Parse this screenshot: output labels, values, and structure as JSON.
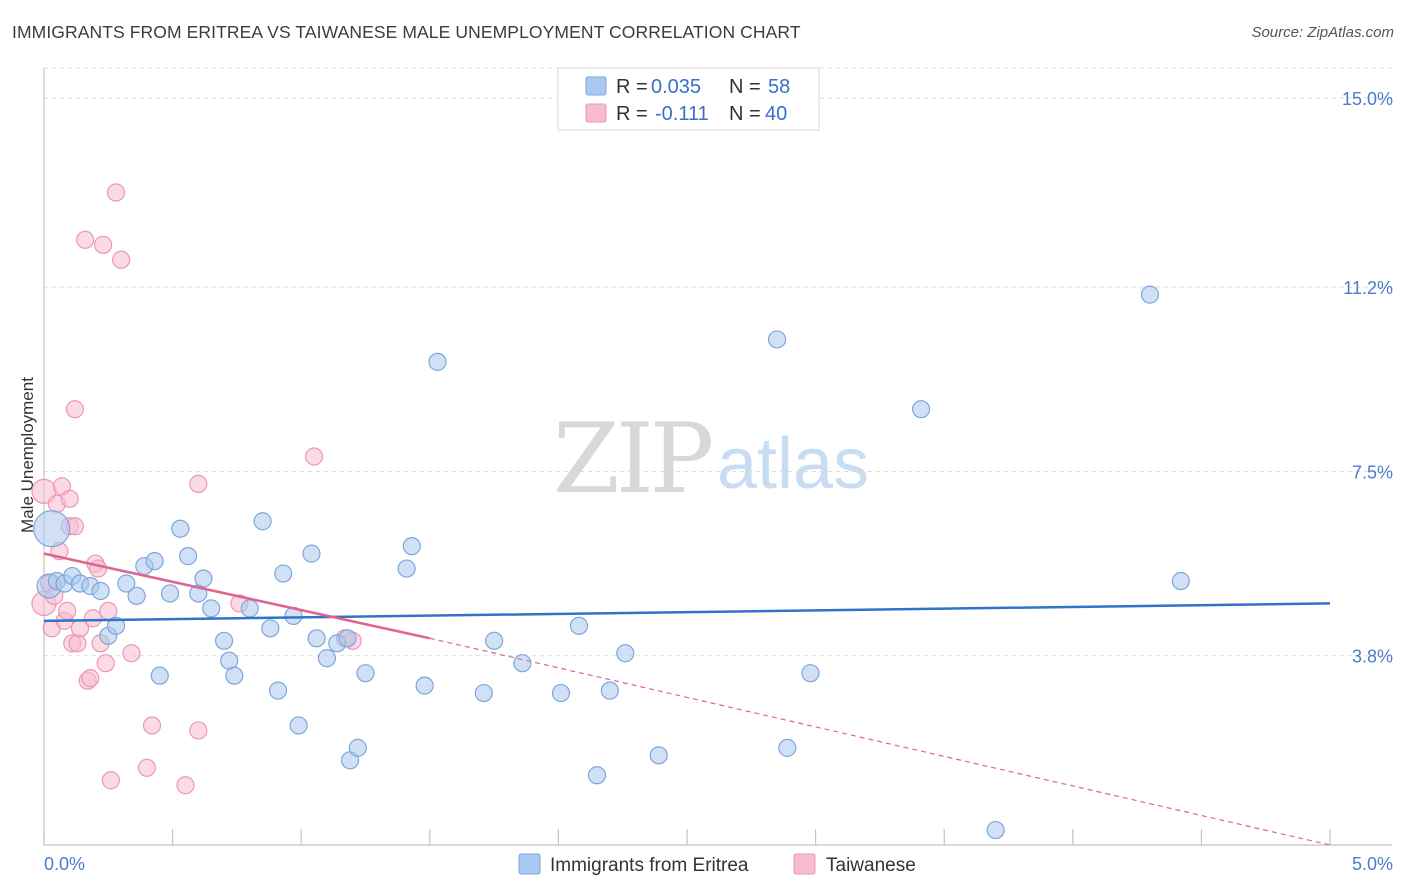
{
  "title": "IMMIGRANTS FROM ERITREA VS TAIWANESE MALE UNEMPLOYMENT CORRELATION CHART",
  "source": "Source: ZipAtlas.com",
  "watermark": {
    "zip": "ZIP",
    "atlas": "atlas"
  },
  "colors": {
    "blue": "#a9c8ef",
    "blue_stroke": "#7ea6dc",
    "blue_line": "#2f74c9",
    "pink": "#f7bcd0",
    "pink_stroke": "#ec97b4",
    "pink_line": "#e0648f",
    "grid": "#dcdcdc",
    "axis": "#bbbbbb"
  },
  "legend": {
    "rows": [
      {
        "r_label": "R = ",
        "r_value": "0.035",
        "n_label": "N = ",
        "n_value": "58"
      },
      {
        "r_label": "R = ",
        "r_value": "-0.111",
        "n_label": "N = ",
        "n_value": "40"
      }
    ]
  },
  "bottom_legend": [
    "Immigrants from Eritrea",
    "Taiwanese"
  ],
  "chart_data": {
    "type": "scatter",
    "title": "IMMIGRANTS FROM ERITREA VS TAIWANESE MALE UNEMPLOYMENT CORRELATION CHART",
    "xlabel": "",
    "ylabel": "Male Unemployment",
    "xlim": [
      0,
      5.0
    ],
    "ylim": [
      0,
      15.6
    ],
    "x_tick_labels": [
      "0.0%",
      "5.0%"
    ],
    "y_ticks": [
      3.8,
      7.5,
      11.2,
      15.0
    ],
    "y_tick_labels": [
      "3.8%",
      "7.5%",
      "11.2%",
      "15.0%"
    ],
    "grid": true,
    "legend_position": "top-center",
    "series": [
      {
        "name": "Immigrants from Eritrea",
        "R": 0.035,
        "N": 58,
        "trend": {
          "x0": 0.0,
          "y0": 4.5,
          "x1": 5.0,
          "y1": 4.85
        },
        "points": [
          {
            "x": 0.02,
            "y": 5.2,
            "s": "l"
          },
          {
            "x": 0.03,
            "y": 6.35,
            "s": "xl"
          },
          {
            "x": 0.05,
            "y": 5.3
          },
          {
            "x": 0.08,
            "y": 5.25
          },
          {
            "x": 0.11,
            "y": 5.4
          },
          {
            "x": 0.14,
            "y": 5.25
          },
          {
            "x": 0.18,
            "y": 5.2
          },
          {
            "x": 0.22,
            "y": 5.1
          },
          {
            "x": 0.25,
            "y": 4.2
          },
          {
            "x": 0.28,
            "y": 4.4
          },
          {
            "x": 0.32,
            "y": 5.25
          },
          {
            "x": 0.36,
            "y": 5.0
          },
          {
            "x": 0.39,
            "y": 5.6
          },
          {
            "x": 0.43,
            "y": 5.7
          },
          {
            "x": 0.45,
            "y": 3.4
          },
          {
            "x": 0.49,
            "y": 5.05
          },
          {
            "x": 0.53,
            "y": 6.35
          },
          {
            "x": 0.56,
            "y": 5.8
          },
          {
            "x": 0.6,
            "y": 5.05
          },
          {
            "x": 0.62,
            "y": 5.35
          },
          {
            "x": 0.65,
            "y": 4.75
          },
          {
            "x": 0.7,
            "y": 4.1
          },
          {
            "x": 0.72,
            "y": 3.7
          },
          {
            "x": 0.74,
            "y": 3.4
          },
          {
            "x": 0.8,
            "y": 4.75
          },
          {
            "x": 0.85,
            "y": 6.5
          },
          {
            "x": 0.88,
            "y": 4.35
          },
          {
            "x": 0.91,
            "y": 3.1
          },
          {
            "x": 0.93,
            "y": 5.45
          },
          {
            "x": 0.97,
            "y": 4.6
          },
          {
            "x": 0.99,
            "y": 2.4
          },
          {
            "x": 1.04,
            "y": 5.85
          },
          {
            "x": 1.06,
            "y": 4.15
          },
          {
            "x": 1.1,
            "y": 3.75
          },
          {
            "x": 1.14,
            "y": 4.05
          },
          {
            "x": 1.18,
            "y": 4.15
          },
          {
            "x": 1.19,
            "y": 1.7
          },
          {
            "x": 1.22,
            "y": 1.95
          },
          {
            "x": 1.25,
            "y": 3.45
          },
          {
            "x": 1.41,
            "y": 5.55
          },
          {
            "x": 1.43,
            "y": 6.0
          },
          {
            "x": 1.48,
            "y": 3.2
          },
          {
            "x": 1.53,
            "y": 9.7
          },
          {
            "x": 1.71,
            "y": 3.05
          },
          {
            "x": 1.75,
            "y": 4.1
          },
          {
            "x": 1.86,
            "y": 3.65
          },
          {
            "x": 2.01,
            "y": 3.05
          },
          {
            "x": 2.08,
            "y": 4.4
          },
          {
            "x": 2.15,
            "y": 1.4
          },
          {
            "x": 2.2,
            "y": 3.1
          },
          {
            "x": 2.26,
            "y": 3.85
          },
          {
            "x": 2.39,
            "y": 1.8
          },
          {
            "x": 2.89,
            "y": 1.95
          },
          {
            "x": 2.85,
            "y": 10.15
          },
          {
            "x": 2.98,
            "y": 3.45
          },
          {
            "x": 3.41,
            "y": 8.75
          },
          {
            "x": 3.7,
            "y": 0.3
          },
          {
            "x": 4.3,
            "y": 11.05
          },
          {
            "x": 4.42,
            "y": 5.3
          }
        ]
      },
      {
        "name": "Taiwanese",
        "R": -0.111,
        "N": 40,
        "trend": {
          "x0": 0.0,
          "y0": 5.85,
          "x1": 1.5,
          "y1": 4.15,
          "dash_to_x": 5.0,
          "dash_to_y": 0.0
        },
        "points": [
          {
            "x": 0.0,
            "y": 7.1,
            "s": "l"
          },
          {
            "x": 0.0,
            "y": 4.85,
            "s": "l"
          },
          {
            "x": 0.02,
            "y": 5.25
          },
          {
            "x": 0.03,
            "y": 4.35
          },
          {
            "x": 0.04,
            "y": 5.0
          },
          {
            "x": 0.05,
            "y": 6.85
          },
          {
            "x": 0.06,
            "y": 5.9
          },
          {
            "x": 0.07,
            "y": 7.2
          },
          {
            "x": 0.08,
            "y": 4.5
          },
          {
            "x": 0.09,
            "y": 4.7
          },
          {
            "x": 0.1,
            "y": 6.4
          },
          {
            "x": 0.1,
            "y": 6.95
          },
          {
            "x": 0.11,
            "y": 4.05
          },
          {
            "x": 0.12,
            "y": 6.4
          },
          {
            "x": 0.12,
            "y": 8.75
          },
          {
            "x": 0.13,
            "y": 4.05
          },
          {
            "x": 0.14,
            "y": 4.35
          },
          {
            "x": 0.16,
            "y": 12.15
          },
          {
            "x": 0.17,
            "y": 3.3
          },
          {
            "x": 0.18,
            "y": 3.35
          },
          {
            "x": 0.19,
            "y": 4.55
          },
          {
            "x": 0.2,
            "y": 5.65
          },
          {
            "x": 0.21,
            "y": 5.55
          },
          {
            "x": 0.22,
            "y": 4.05
          },
          {
            "x": 0.23,
            "y": 12.05
          },
          {
            "x": 0.24,
            "y": 3.65
          },
          {
            "x": 0.25,
            "y": 4.7
          },
          {
            "x": 0.26,
            "y": 1.3
          },
          {
            "x": 0.28,
            "y": 13.1
          },
          {
            "x": 0.3,
            "y": 11.75
          },
          {
            "x": 0.34,
            "y": 3.85
          },
          {
            "x": 0.4,
            "y": 1.55
          },
          {
            "x": 0.42,
            "y": 2.4
          },
          {
            "x": 0.55,
            "y": 1.2
          },
          {
            "x": 0.6,
            "y": 7.25
          },
          {
            "x": 0.6,
            "y": 2.3
          },
          {
            "x": 0.76,
            "y": 4.85
          },
          {
            "x": 1.05,
            "y": 7.8
          },
          {
            "x": 1.17,
            "y": 4.15
          },
          {
            "x": 1.2,
            "y": 4.1
          }
        ]
      }
    ]
  }
}
